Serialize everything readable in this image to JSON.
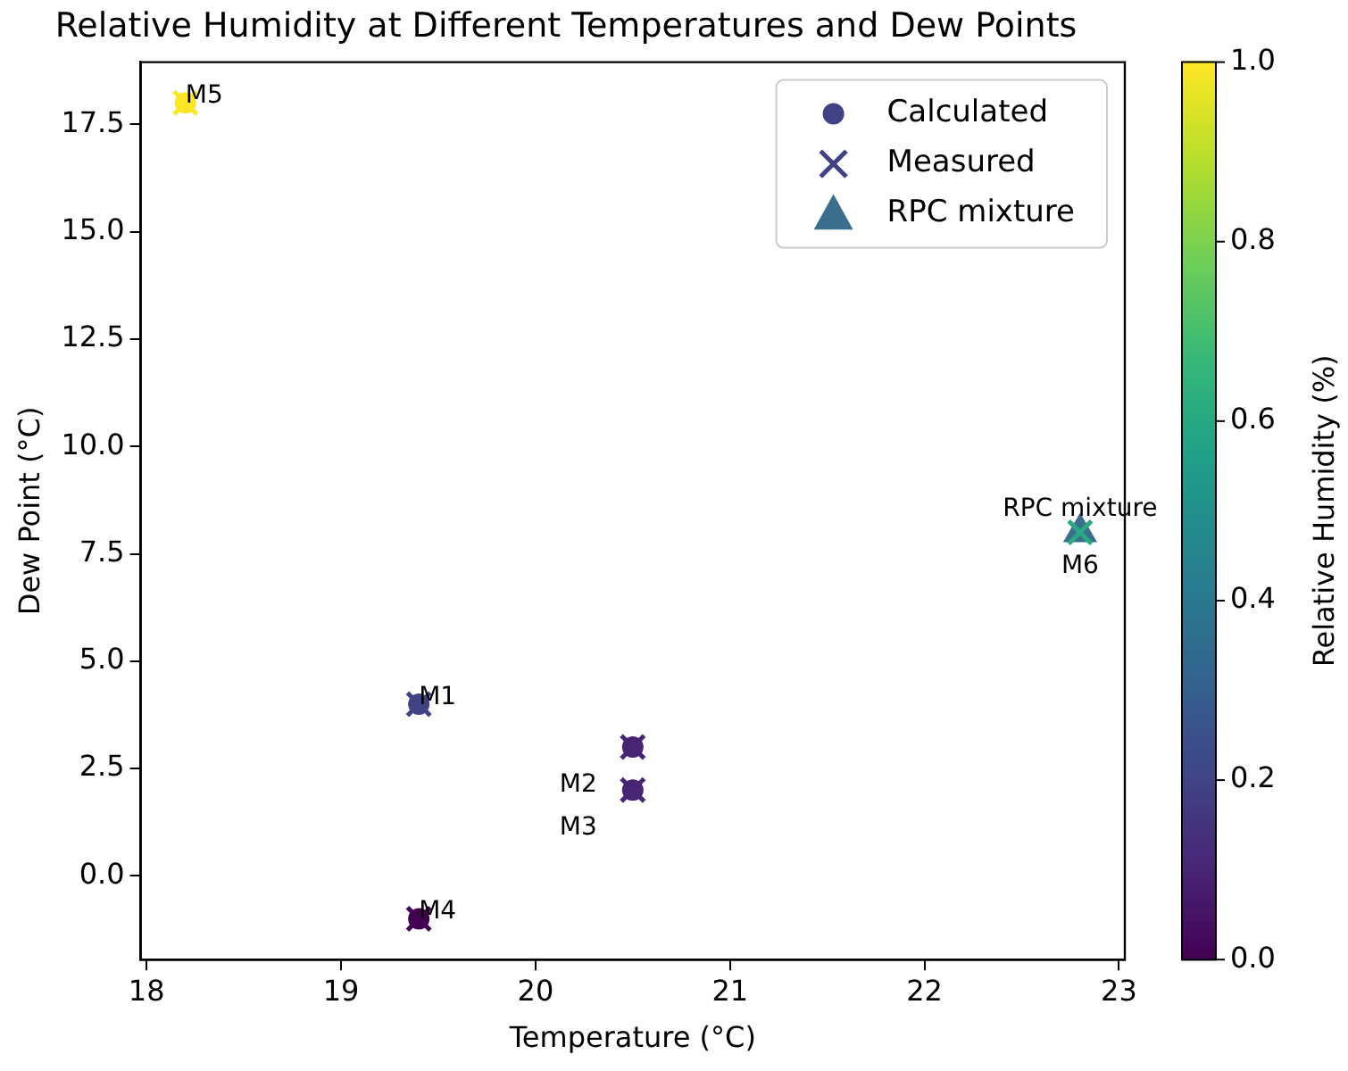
{
  "chart_data": {
    "type": "scatter",
    "title": "Relative Humidity at Different Temperatures and Dew Points",
    "xlabel": "Temperature (°C)",
    "ylabel": "Dew Point (°C)",
    "clabel": "Relative Humidity (%)",
    "xlim": [
      17.97,
      23.03
    ],
    "xticks": [
      18,
      19,
      20,
      21,
      22,
      23
    ],
    "ylim": [
      -1.95,
      18.95
    ],
    "yticks": [
      {
        "value": 0,
        "label": "0.0"
      },
      {
        "value": 2.5,
        "label": "2.5"
      },
      {
        "value": 5,
        "label": "5.0"
      },
      {
        "value": 7.5,
        "label": "7.5"
      },
      {
        "value": 10,
        "label": "10.0"
      },
      {
        "value": 12.5,
        "label": "12.5"
      },
      {
        "value": 15,
        "label": "15.0"
      },
      {
        "value": 17.5,
        "label": "17.5"
      }
    ],
    "clim": [
      0,
      1
    ],
    "cticks": [
      {
        "value": 0,
        "label": "0.0"
      },
      {
        "value": 0.2,
        "label": "0.2"
      },
      {
        "value": 0.4,
        "label": "0.4"
      },
      {
        "value": 0.6,
        "label": "0.6"
      },
      {
        "value": 0.8,
        "label": "0.8"
      },
      {
        "value": 1,
        "label": "1.0"
      }
    ],
    "grid": false,
    "legend": "top right",
    "series": [
      {
        "name": "Calculated",
        "marker": "circle",
        "x": [
          19.4,
          20.5,
          20.5,
          19.4,
          18.2
        ],
        "values": [
          4,
          3,
          2,
          -1,
          18
        ],
        "colors": [
          "#404286",
          "#482474",
          "#482474",
          "#440154",
          "#fde725"
        ]
      },
      {
        "name": "Measured",
        "marker": "cross",
        "x": [
          19.4,
          20.5,
          20.5,
          19.4,
          18.2,
          22.8
        ],
        "values": [
          4,
          3,
          2,
          -1,
          18,
          8
        ],
        "colors": [
          "#404286",
          "#482474",
          "#482474",
          "#440154",
          "#fde725",
          "#28a883"
        ]
      },
      {
        "name": "RPC mixture",
        "color": "#3b6e8c",
        "marker": "triangle",
        "x": [
          22.8
        ],
        "values": [
          8
        ]
      }
    ],
    "annotations": [
      {
        "text": "M1",
        "x": 19.4,
        "y": 4
      },
      {
        "text": "M2",
        "x": 20.5,
        "y": 3
      },
      {
        "text": "M3",
        "x": 20.5,
        "y": 2
      },
      {
        "text": "M4",
        "x": 19.4,
        "y": -1
      },
      {
        "text": "M5",
        "x": 18.2,
        "y": 18
      },
      {
        "text": "M6",
        "x": 22.8,
        "y": 8
      },
      {
        "text": "RPC mixture",
        "x": 22.8,
        "y": 8
      }
    ]
  }
}
